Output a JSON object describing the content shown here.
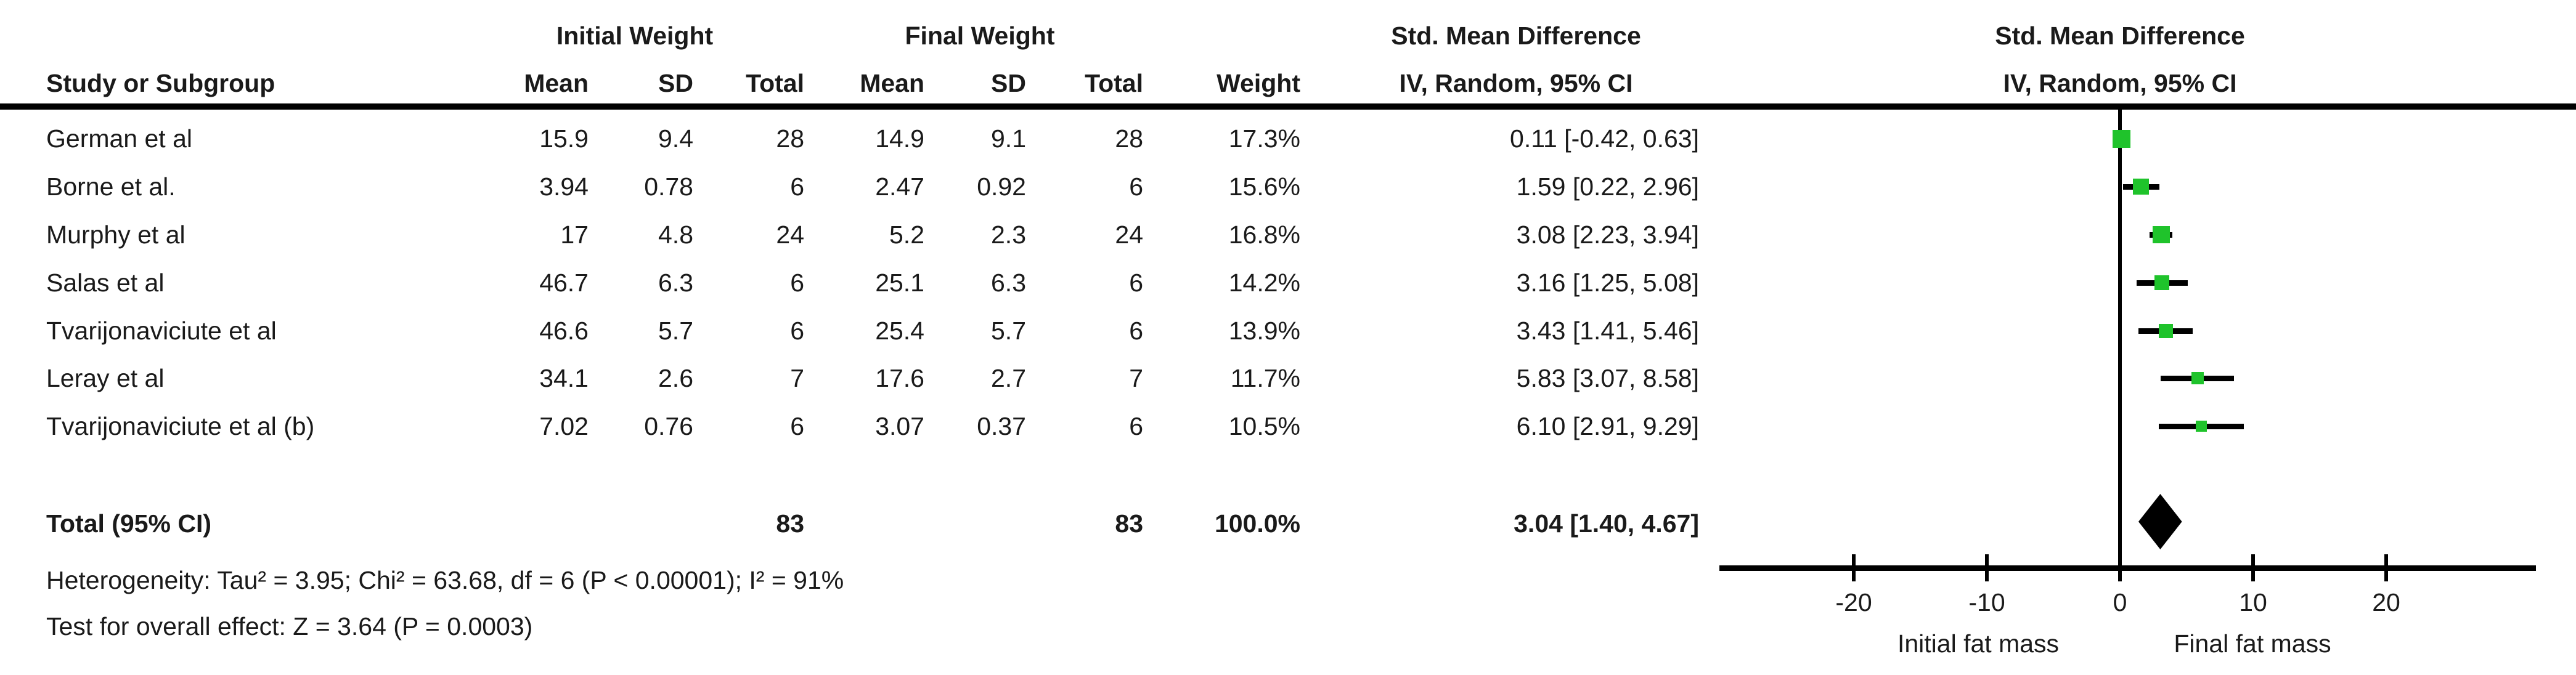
{
  "table": {
    "header": {
      "study": "Study or Subgroup",
      "group_initial": "Initial Weight",
      "group_final": "Final Weight",
      "mean_initial": "Mean",
      "sd_initial": "SD",
      "total_initial": "Total",
      "mean_final": "Mean",
      "sd_final": "SD",
      "total_final": "Total",
      "weight": "Weight",
      "smd_table_line1": "Std. Mean Difference",
      "smd_table_line2": "IV, Random, 95% CI",
      "smd_plot_line1": "Std. Mean Difference",
      "smd_plot_line2": "IV, Random, 95% CI"
    },
    "rows": [
      {
        "study": "German et al",
        "i_mean": "15.9",
        "i_sd": "9.4",
        "i_total": "28",
        "f_mean": "14.9",
        "f_sd": "9.1",
        "f_total": "28",
        "weight": "17.3%",
        "ci": "0.11 [-0.42, 0.63]"
      },
      {
        "study": "Borne et al.",
        "i_mean": "3.94",
        "i_sd": "0.78",
        "i_total": "6",
        "f_mean": "2.47",
        "f_sd": "0.92",
        "f_total": "6",
        "weight": "15.6%",
        "ci": "1.59 [0.22, 2.96]"
      },
      {
        "study": "Murphy et al",
        "i_mean": "17",
        "i_sd": "4.8",
        "i_total": "24",
        "f_mean": "5.2",
        "f_sd": "2.3",
        "f_total": "24",
        "weight": "16.8%",
        "ci": "3.08 [2.23, 3.94]"
      },
      {
        "study": "Salas  et al",
        "i_mean": "46.7",
        "i_sd": "6.3",
        "i_total": "6",
        "f_mean": "25.1",
        "f_sd": "6.3",
        "f_total": "6",
        "weight": "14.2%",
        "ci": "3.16 [1.25, 5.08]"
      },
      {
        "study": "Tvarijonaviciute et al",
        "i_mean": "46.6",
        "i_sd": "5.7",
        "i_total": "6",
        "f_mean": "25.4",
        "f_sd": "5.7",
        "f_total": "6",
        "weight": "13.9%",
        "ci": "3.43 [1.41, 5.46]"
      },
      {
        "study": "Leray et al",
        "i_mean": "34.1",
        "i_sd": "2.6",
        "i_total": "7",
        "f_mean": "17.6",
        "f_sd": "2.7",
        "f_total": "7",
        "weight": "11.7%",
        "ci": "5.83 [3.07, 8.58]"
      },
      {
        "study": "Tvarijonaviciute et al (b)",
        "i_mean": "7.02",
        "i_sd": "0.76",
        "i_total": "6",
        "f_mean": "3.07",
        "f_sd": "0.37",
        "f_total": "6",
        "weight": "10.5%",
        "ci": "6.10 [2.91, 9.29]"
      }
    ],
    "total_row": {
      "label": "Total (95% CI)",
      "i_total": "83",
      "f_total": "83",
      "weight": "100.0%",
      "ci": "3.04 [1.40, 4.67]"
    },
    "heterogeneity": "Heterogeneity: Tau² = 3.95; Chi² = 63.68, df = 6 (P < 0.00001); I² = 91%",
    "overall_effect": "Test for overall effect: Z = 3.64 (P = 0.0003)"
  },
  "chart_data": {
    "type": "scatter",
    "subtype": "forest-plot",
    "title": "Std. Mean Difference",
    "method_label": "IV, Random, 95% CI",
    "studies": [
      {
        "name": "German et al",
        "smd": 0.11,
        "ci_low": -0.42,
        "ci_high": 0.63,
        "weight_pct": 17.3
      },
      {
        "name": "Borne et al.",
        "smd": 1.59,
        "ci_low": 0.22,
        "ci_high": 2.96,
        "weight_pct": 15.6
      },
      {
        "name": "Murphy et al",
        "smd": 3.08,
        "ci_low": 2.23,
        "ci_high": 3.94,
        "weight_pct": 16.8
      },
      {
        "name": "Salas  et al",
        "smd": 3.16,
        "ci_low": 1.25,
        "ci_high": 5.08,
        "weight_pct": 14.2
      },
      {
        "name": "Tvarijonaviciute et al",
        "smd": 3.43,
        "ci_low": 1.41,
        "ci_high": 5.46,
        "weight_pct": 13.9
      },
      {
        "name": "Leray et al",
        "smd": 5.83,
        "ci_low": 3.07,
        "ci_high": 8.58,
        "weight_pct": 11.7
      },
      {
        "name": "Tvarijonaviciute et al (b)",
        "smd": 6.1,
        "ci_low": 2.91,
        "ci_high": 9.29,
        "weight_pct": 10.5
      }
    ],
    "total": {
      "smd": 3.04,
      "ci_low": 1.4,
      "ci_high": 4.67
    },
    "axis": {
      "ticks": [
        "-20",
        "-10",
        "0",
        "10",
        "20"
      ],
      "tick_values": [
        -20,
        -10,
        0,
        10,
        20
      ],
      "xlim": [
        -30,
        32
      ],
      "left_label": "Initial fat mass",
      "right_label": "Final fat mass"
    },
    "marker_color": "#1fc32b",
    "line_color": "#000000",
    "diamond_color": "#000000"
  }
}
